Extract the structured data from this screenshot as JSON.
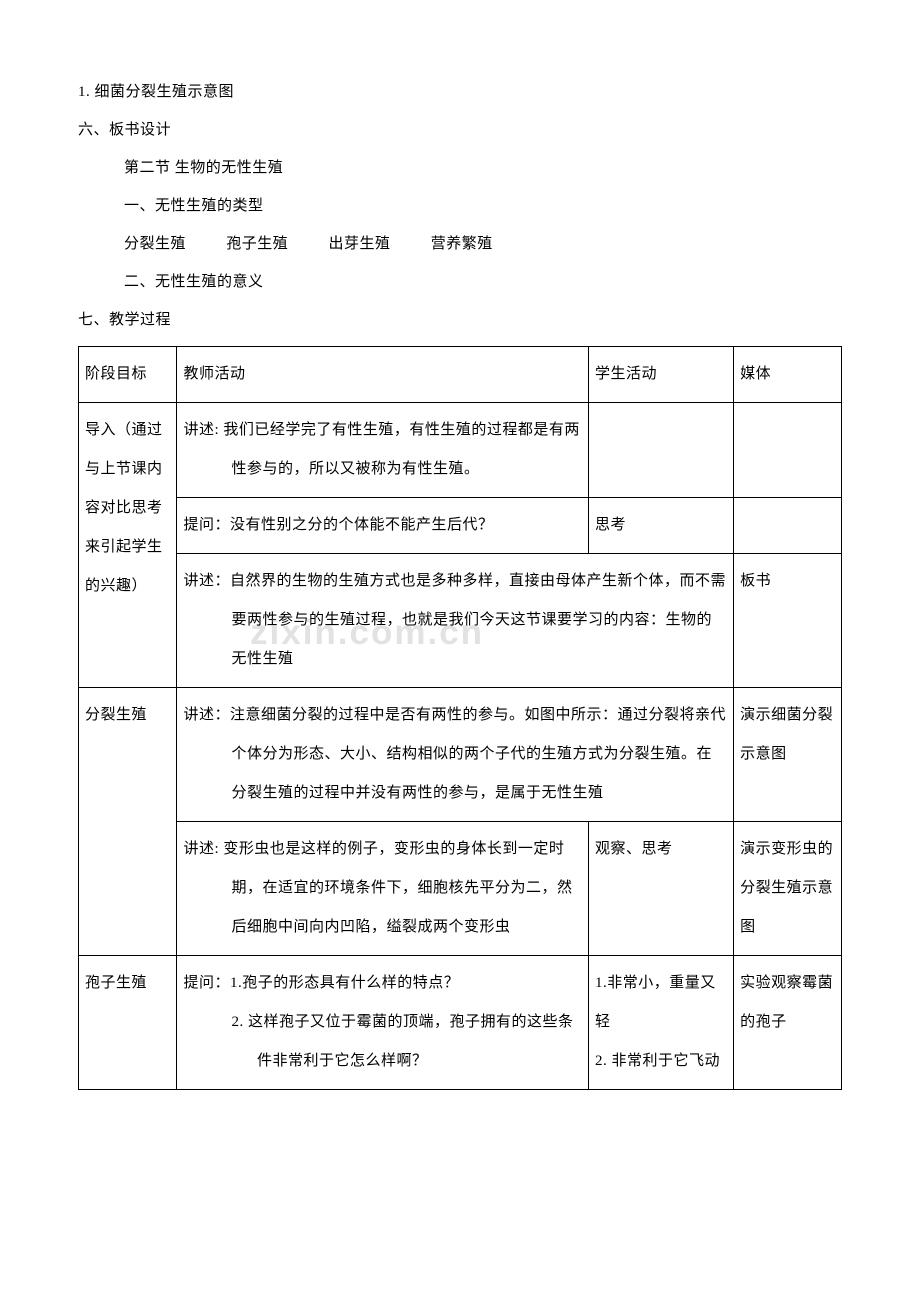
{
  "watermark": "zixin.com.cn",
  "item1": "1.  细菌分裂生殖示意图",
  "section6": "六、板书设计",
  "board": {
    "title": "第二节    生物的无性生殖",
    "h1": "一、无性生殖的类型",
    "types": {
      "a": "分裂生殖",
      "b": "孢子生殖",
      "c": "出芽生殖",
      "d": "营养繁殖"
    },
    "h2": "二、无性生殖的意义"
  },
  "section7": "七、教学过程",
  "head": {
    "stage": "阶段目标",
    "teacher": "教师活动",
    "student": "学生活动",
    "media": "媒体"
  },
  "rows": {
    "r1": {
      "stage": "导入（通过与上节课内容对比思考来引起学生的兴趣）",
      "t1": "讲述: 我们已经学完了有性生殖，有性生殖的过程都是有两性参与的，所以又被称为有性生殖。",
      "t2": "提问：没有性别之分的个体能不能产生后代？",
      "s2": "思考",
      "t3": "讲述：自然界的生物的生殖方式也是多种多样，直接由母体产生新个体，而不需要两性参与的生殖过程，也就是我们今天这节课要学习的内容：生物的无性生殖",
      "m3": "板书"
    },
    "r2": {
      "stage": "分裂生殖",
      "t1": "讲述：注意细菌分裂的过程中是否有两性的参与。如图中所示：通过分裂将亲代个体分为形态、大小、结构相似的两个子代的生殖方式为分裂生殖。在分裂生殖的过程中并没有两性的参与，是属于无性生殖",
      "m1": "演示细菌分裂示意图",
      "t2": "讲述: 变形虫也是这样的例子，变形虫的身体长到一定时期，在适宜的环境条件下，细胞核先平分为二，然后细胞中间向内凹陷，缢裂成两个变形虫",
      "s2": "观察、思考",
      "m2": "演示变形虫的分裂生殖示意图"
    },
    "r3": {
      "stage": "孢子生殖",
      "t1": "提问：1.孢子的形态具有什么样的特点？",
      "t2": "2. 这样孢子又位于霉菌的顶端，孢子拥有的这些条件非常利于它怎么样啊？",
      "s1": "1.非常小，重量又轻",
      "s2": "2. 非常利于它飞动",
      "m1": "实验观察霉菌的孢子"
    }
  }
}
